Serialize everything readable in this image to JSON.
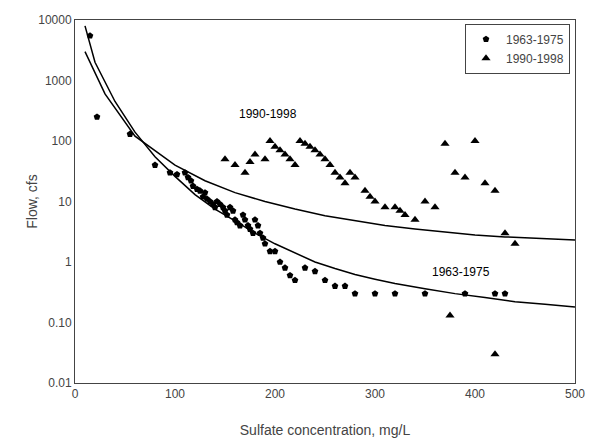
{
  "chart_data": {
    "type": "scatter",
    "title": "",
    "xlabel": "Sulfate concentration, mg/L",
    "ylabel": "Flow, cfs",
    "log": "y",
    "grid": false,
    "legend": "upper right",
    "xlim": [
      0,
      500
    ],
    "xticks": [
      0,
      100,
      200,
      300,
      400,
      500
    ],
    "ylim": [
      0.01,
      10000
    ],
    "yticks": [
      0.01,
      {
        "value": 0.1,
        "label": "0.10"
      },
      1,
      10,
      100,
      1000,
      10000
    ],
    "annotations": [
      {
        "text": "1963-1975",
        "x": 355,
        "y": 0.48
      },
      {
        "text": "1990-1998",
        "x": 162,
        "y": 200
      }
    ],
    "series": [
      {
        "name": "1963-1975",
        "type": "scatter",
        "marker": "pentagon",
        "color": "#000000",
        "x": [
          15,
          22,
          55,
          80,
          95,
          102,
          110,
          113,
          116,
          118,
          122,
          125,
          128,
          130,
          132,
          135,
          138,
          140,
          142,
          145,
          148,
          150,
          152,
          155,
          158,
          160,
          162,
          165,
          168,
          170,
          173,
          175,
          178,
          180,
          183,
          185,
          188,
          190,
          195,
          200,
          205,
          210,
          215,
          220,
          230,
          240,
          250,
          260,
          270,
          280,
          300,
          320,
          350,
          390,
          420,
          430
        ],
        "values": [
          5500,
          250,
          130,
          40,
          30,
          28,
          30,
          25,
          22,
          18,
          16,
          15,
          12,
          14,
          11,
          10,
          9,
          8,
          10,
          9,
          8,
          7,
          6,
          8,
          7,
          5,
          4.5,
          4,
          6,
          5,
          4,
          3.5,
          3,
          5,
          4,
          3,
          2.5,
          2,
          1.5,
          1.5,
          1,
          0.8,
          0.6,
          0.5,
          0.8,
          0.7,
          0.5,
          0.4,
          0.4,
          0.3,
          0.3,
          0.3,
          0.3,
          0.3,
          0.3,
          0.3
        ]
      },
      {
        "name": "1990-1998",
        "type": "scatter",
        "marker": "triangle-up",
        "color": "#000000",
        "x": [
          150,
          160,
          170,
          175,
          180,
          190,
          195,
          200,
          205,
          210,
          215,
          220,
          225,
          230,
          235,
          240,
          245,
          250,
          255,
          260,
          265,
          270,
          275,
          280,
          290,
          295,
          300,
          310,
          320,
          325,
          330,
          340,
          350,
          360,
          370,
          380,
          390,
          400,
          410,
          420,
          430,
          440,
          375,
          420
        ],
        "values": [
          50,
          40,
          30,
          45,
          60,
          50,
          100,
          80,
          70,
          60,
          50,
          40,
          100,
          90,
          80,
          70,
          60,
          50,
          40,
          30,
          25,
          20,
          30,
          25,
          15,
          12,
          10,
          8,
          8,
          7,
          6,
          5,
          10,
          8,
          90,
          30,
          25,
          100,
          20,
          15,
          3,
          2,
          0.13,
          0.03
        ]
      },
      {
        "type": "line",
        "line_style": "solid",
        "color": "#000000",
        "x": [
          10,
          20,
          40,
          60,
          80,
          100,
          120,
          140,
          160,
          180,
          200,
          220,
          240,
          260,
          280,
          300,
          320,
          350,
          380,
          410,
          440,
          470,
          500
        ],
        "values": [
          8000,
          2000,
          450,
          140,
          55,
          26,
          13,
          7.5,
          4.8,
          3.0,
          2.0,
          1.4,
          1.0,
          0.78,
          0.62,
          0.52,
          0.44,
          0.36,
          0.3,
          0.26,
          0.22,
          0.2,
          0.18
        ]
      },
      {
        "type": "line",
        "line_style": "solid",
        "color": "#000000",
        "x": [
          10,
          30,
          60,
          100,
          130,
          160,
          190,
          220,
          250,
          280,
          310,
          340,
          370,
          400,
          430,
          470,
          500
        ],
        "values": [
          3000,
          600,
          120,
          40,
          22,
          14,
          10,
          7.5,
          5.8,
          4.8,
          4.0,
          3.5,
          3.1,
          2.8,
          2.6,
          2.4,
          2.3
        ]
      }
    ]
  }
}
